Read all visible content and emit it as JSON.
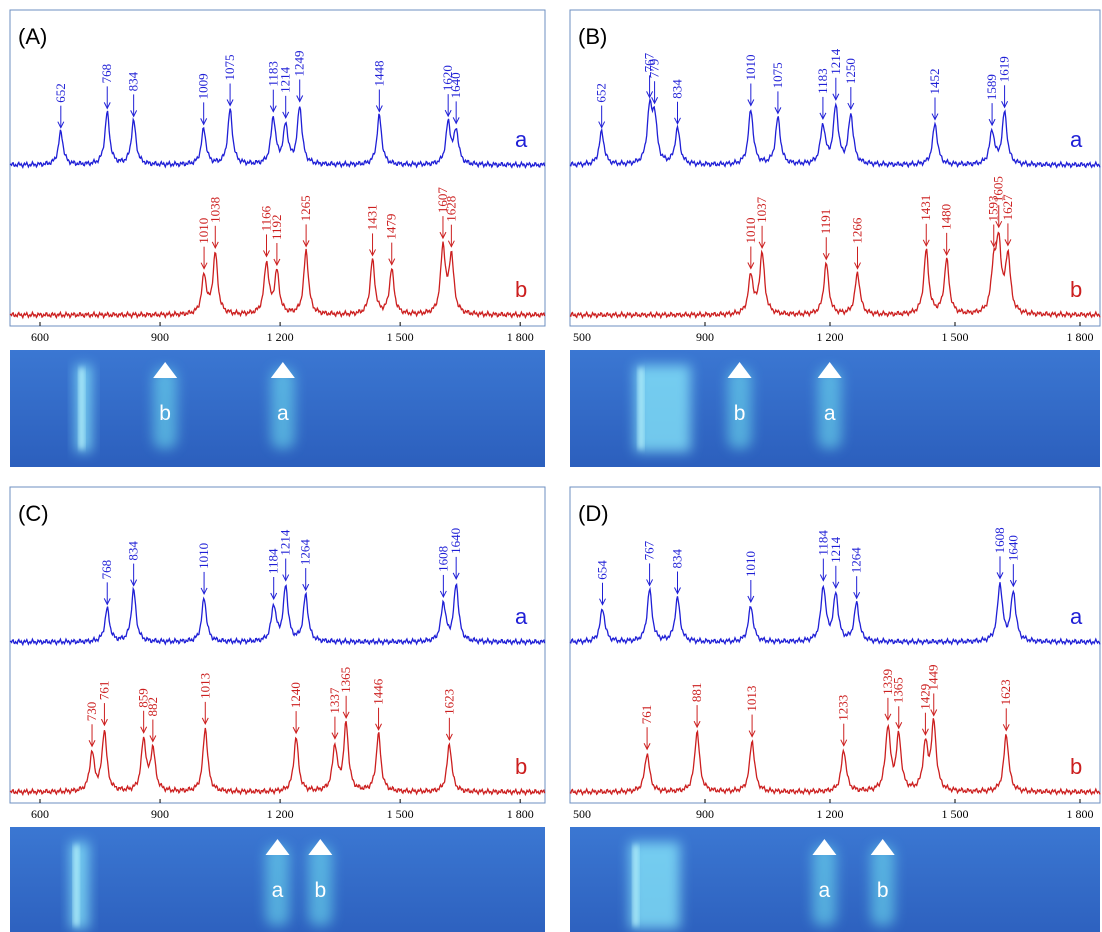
{
  "panels": [
    {
      "label": "(A)",
      "xlim": [
        525,
        1862
      ],
      "xticks": [
        600,
        900,
        {
          "value": 1200,
          "label": "1 200"
        },
        {
          "value": 1500,
          "label": "1 500"
        },
        {
          "value": 1800,
          "label": "1 800"
        }
      ],
      "spectra": [
        {
          "name": "a",
          "color": "#1f1fd6",
          "peaks": [
            652,
            768,
            834,
            1009,
            1075,
            1183,
            1214,
            1249,
            1448,
            1620,
            1640
          ]
        },
        {
          "name": "b",
          "color": "#cc1f1f",
          "peaks": [
            1010,
            1038,
            1166,
            1192,
            1265,
            1431,
            1479,
            1607,
            1628
          ]
        }
      ],
      "spots": [
        "b",
        "a"
      ]
    },
    {
      "label": "(B)",
      "xlim": [
        576,
        1848
      ],
      "xticks": [
        500,
        900,
        {
          "value": 1200,
          "label": "1 200"
        },
        {
          "value": 1500,
          "label": "1 500"
        },
        {
          "value": 1800,
          "label": "1 800"
        }
      ],
      "spectra": [
        {
          "name": "a",
          "color": "#1f1fd6",
          "peaks": [
            652,
            767,
            779,
            834,
            1010,
            1075,
            1183,
            1214,
            1250,
            1452,
            1589,
            1619
          ]
        },
        {
          "name": "b",
          "color": "#cc1f1f",
          "peaks": [
            1010,
            1037,
            1191,
            1266,
            1431,
            1480,
            1593,
            1605,
            1627
          ]
        }
      ],
      "spots": [
        "b",
        "a"
      ]
    },
    {
      "label": "(C)",
      "xlim": [
        525,
        1862
      ],
      "xticks": [
        600,
        900,
        {
          "value": 1200,
          "label": "1 200"
        },
        {
          "value": 1500,
          "label": "1 500"
        },
        {
          "value": 1800,
          "label": "1 800"
        }
      ],
      "spectra": [
        {
          "name": "a",
          "color": "#1f1fd6",
          "peaks": [
            768,
            834,
            1010,
            1184,
            1214,
            1264,
            1608,
            1640
          ]
        },
        {
          "name": "b",
          "color": "#cc1f1f",
          "peaks": [
            730,
            761,
            859,
            882,
            1013,
            1240,
            1337,
            1365,
            1446,
            1623
          ]
        }
      ],
      "spots": [
        "a",
        "b"
      ]
    },
    {
      "label": "(D)",
      "xlim": [
        576,
        1848
      ],
      "xticks": [
        500,
        900,
        {
          "value": 1200,
          "label": "1 200"
        },
        {
          "value": 1500,
          "label": "1 500"
        },
        {
          "value": 1800,
          "label": "1 800"
        }
      ],
      "spectra": [
        {
          "name": "a",
          "color": "#1f1fd6",
          "peaks": [
            654,
            767,
            834,
            1010,
            1184,
            1214,
            1264,
            1608,
            1640
          ]
        },
        {
          "name": "b",
          "color": "#cc1f1f",
          "peaks": [
            761,
            881,
            1013,
            1233,
            1339,
            1365,
            1429,
            1449,
            1623
          ]
        }
      ],
      "spots": [
        "a",
        "b"
      ]
    }
  ]
}
